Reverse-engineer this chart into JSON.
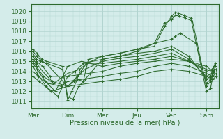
{
  "bg_color": "#d4ecea",
  "grid_color": "#b2d4d0",
  "line_color": "#2d6a2d",
  "xlabel": "Pression niveau de la mer( hPa )",
  "xtick_labels": [
    "Mar",
    "Dim",
    "Mer",
    "Jeu",
    "Ven",
    "Sam"
  ],
  "xtick_positions": [
    0,
    1,
    2,
    3,
    4,
    5
  ],
  "ytick_min": 1011,
  "ytick_max": 1020,
  "ylim": [
    1010.3,
    1020.7
  ],
  "xlim": [
    -0.05,
    5.35
  ],
  "spaghetti": [
    {
      "x": [
        0.0,
        0.12,
        0.25,
        0.4,
        0.85,
        1.0,
        1.12,
        1.28,
        1.45,
        1.6,
        2.0,
        2.5,
        3.0,
        3.5,
        3.8,
        4.0,
        4.1,
        4.2,
        4.35,
        4.55,
        5.0,
        5.12,
        5.22
      ],
      "y": [
        1016.2,
        1015.8,
        1015.2,
        1015.0,
        1014.5,
        1011.1,
        1012.0,
        1013.2,
        1013.0,
        1015.2,
        1015.5,
        1015.8,
        1016.2,
        1016.5,
        1018.5,
        1019.5,
        1019.9,
        1019.8,
        1019.6,
        1019.3,
        1012.0,
        1012.3,
        1014.2
      ]
    },
    {
      "x": [
        0.0,
        0.12,
        0.25,
        0.4,
        0.85,
        1.0,
        1.15,
        1.32,
        1.5,
        1.65,
        2.0,
        2.5,
        3.0,
        3.5,
        3.8,
        4.0,
        4.12,
        4.22,
        4.4,
        4.6,
        5.0,
        5.12,
        5.22
      ],
      "y": [
        1016.0,
        1015.5,
        1015.0,
        1014.8,
        1014.2,
        1011.5,
        1011.2,
        1012.5,
        1013.2,
        1013.8,
        1015.2,
        1015.5,
        1016.0,
        1016.8,
        1018.8,
        1019.2,
        1019.6,
        1019.5,
        1019.3,
        1019.0,
        1012.5,
        1013.0,
        1014.0
      ]
    },
    {
      "x": [
        0.0,
        0.1,
        0.22,
        0.38,
        1.0,
        1.18,
        1.38,
        1.55,
        2.0,
        2.5,
        3.0,
        3.5,
        4.0,
        4.1,
        4.25,
        4.7,
        5.0,
        5.12,
        5.22
      ],
      "y": [
        1015.8,
        1015.2,
        1015.0,
        1014.8,
        1012.5,
        1013.0,
        1014.0,
        1014.8,
        1015.5,
        1015.8,
        1016.2,
        1016.8,
        1017.2,
        1017.5,
        1017.8,
        1016.8,
        1012.8,
        1013.2,
        1014.0
      ]
    },
    {
      "x": [
        0.0,
        0.1,
        0.28,
        0.5,
        1.0,
        1.22,
        1.45,
        2.0,
        2.5,
        3.0,
        3.5,
        4.0,
        4.5,
        5.0,
        5.12,
        5.22
      ],
      "y": [
        1015.5,
        1015.0,
        1014.5,
        1013.5,
        1013.5,
        1014.0,
        1014.8,
        1015.2,
        1015.5,
        1015.8,
        1016.0,
        1016.5,
        1015.5,
        1013.2,
        1013.5,
        1014.5
      ]
    },
    {
      "x": [
        0.0,
        0.1,
        0.28,
        0.55,
        1.0,
        1.28,
        1.5,
        2.0,
        2.5,
        3.0,
        3.5,
        4.0,
        4.5,
        5.0,
        5.15,
        5.25
      ],
      "y": [
        1015.2,
        1014.8,
        1014.0,
        1013.0,
        1012.5,
        1013.5,
        1014.2,
        1015.0,
        1015.3,
        1015.5,
        1015.8,
        1016.2,
        1015.2,
        1013.5,
        1013.8,
        1014.8
      ]
    },
    {
      "x": [
        0.0,
        0.1,
        0.3,
        0.6,
        1.0,
        1.35,
        1.55,
        2.0,
        2.5,
        3.0,
        3.5,
        4.0,
        4.5,
        5.0,
        5.15,
        5.25
      ],
      "y": [
        1015.0,
        1014.5,
        1013.5,
        1012.8,
        1013.8,
        1014.2,
        1014.8,
        1014.8,
        1015.0,
        1015.2,
        1015.5,
        1015.8,
        1015.0,
        1014.0,
        1014.2,
        1014.5
      ]
    },
    {
      "x": [
        0.0,
        0.12,
        0.35,
        0.65,
        1.0,
        1.4,
        2.0,
        2.5,
        3.0,
        3.5,
        4.0,
        4.5,
        5.0,
        5.18,
        5.28
      ],
      "y": [
        1014.8,
        1014.2,
        1013.0,
        1012.0,
        1014.5,
        1015.0,
        1014.5,
        1014.8,
        1015.0,
        1015.2,
        1015.5,
        1015.0,
        1014.2,
        1014.0,
        1014.2
      ]
    },
    {
      "x": [
        0.0,
        0.12,
        0.38,
        0.72,
        1.0,
        2.0,
        2.5,
        3.0,
        3.5,
        4.0,
        4.5,
        5.0,
        5.18,
        5.28
      ],
      "y": [
        1014.5,
        1013.8,
        1012.5,
        1011.5,
        1013.5,
        1014.0,
        1014.5,
        1014.8,
        1015.0,
        1015.2,
        1015.0,
        1014.5,
        1014.0,
        1014.2
      ]
    },
    {
      "x": [
        0.0,
        0.15,
        0.45,
        0.82,
        1.0,
        2.0,
        2.5,
        3.0,
        3.5,
        4.0,
        4.5,
        5.0,
        5.18,
        5.28
      ],
      "y": [
        1014.0,
        1013.5,
        1012.8,
        1012.5,
        1013.0,
        1013.5,
        1013.8,
        1014.0,
        1014.5,
        1014.8,
        1014.5,
        1013.8,
        1013.5,
        1013.8
      ]
    },
    {
      "x": [
        0.0,
        0.18,
        0.52,
        1.0,
        2.0,
        2.5,
        3.0,
        3.5,
        4.0,
        4.5,
        5.0,
        5.18,
        5.28
      ],
      "y": [
        1013.5,
        1013.0,
        1012.0,
        1012.5,
        1013.0,
        1013.2,
        1013.5,
        1014.0,
        1014.2,
        1014.0,
        1013.5,
        1013.2,
        1013.5
      ]
    }
  ]
}
